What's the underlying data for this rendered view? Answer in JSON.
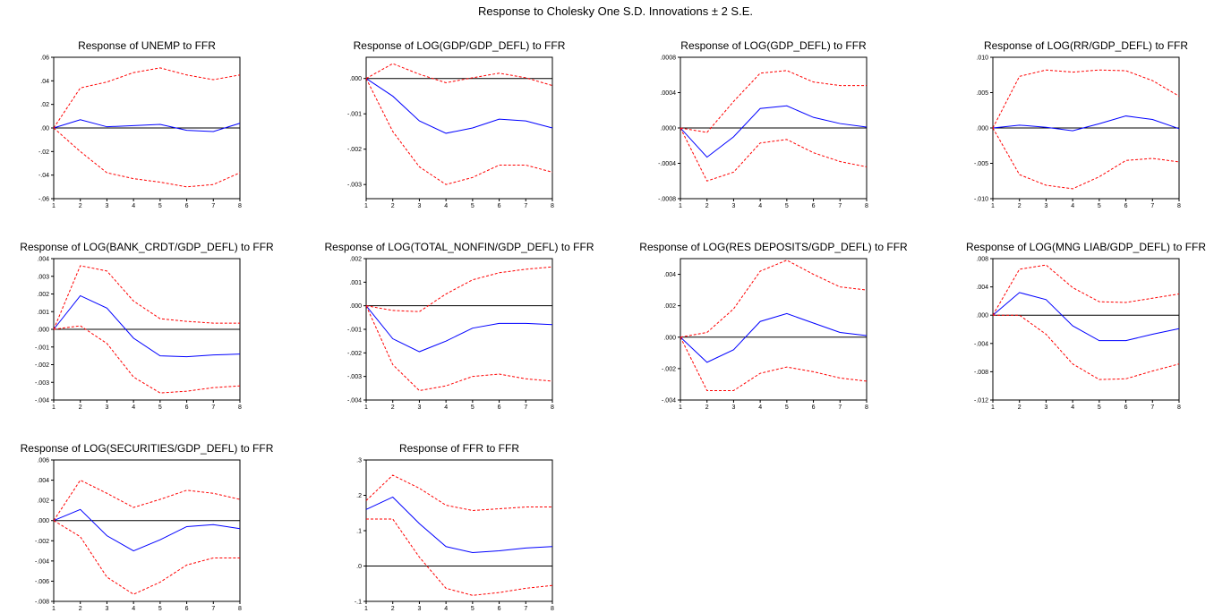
{
  "title": "Response to Cholesky One S.D. Innovations ± 2 S.E.",
  "colors": {
    "response": "#0000ff",
    "band": "#ff0000",
    "zero": "#000000"
  },
  "chart_data": [
    {
      "type": "line",
      "title": "Response of UNEMP to FFR",
      "x": [
        1,
        2,
        3,
        4,
        5,
        6,
        7,
        8
      ],
      "ylim": [
        -0.06,
        0.06
      ],
      "yticks": [
        ".06",
        ".04",
        ".02",
        ".00",
        "-.02",
        "-.04",
        "-.06"
      ],
      "series": [
        {
          "values": [
            0.0,
            0.007,
            0.001,
            0.002,
            0.003,
            -0.002,
            -0.003,
            0.004
          ]
        },
        {
          "values": [
            0.0,
            0.034,
            0.039,
            0.047,
            0.051,
            0.045,
            0.041,
            0.045
          ]
        },
        {
          "values": [
            0.0,
            -0.02,
            -0.038,
            -0.043,
            -0.046,
            -0.05,
            -0.048,
            -0.038
          ]
        }
      ]
    },
    {
      "type": "line",
      "title": "Response of LOG(GDP/GDP_DEFL) to FFR",
      "x": [
        1,
        2,
        3,
        4,
        5,
        6,
        7,
        8
      ],
      "ylim": [
        -0.0034,
        0.0006
      ],
      "yticks": [
        ".000",
        "-.001",
        "-.002",
        "-.003"
      ],
      "series": [
        {
          "values": [
            0.0,
            -0.0005,
            -0.0012,
            -0.00155,
            -0.0014,
            -0.00115,
            -0.0012,
            -0.0014
          ]
        },
        {
          "values": [
            0.0,
            0.00042,
            0.00012,
            -0.00012,
            2e-05,
            0.00015,
            2e-05,
            -0.0002
          ]
        },
        {
          "values": [
            0.0,
            -0.0015,
            -0.0025,
            -0.003,
            -0.0028,
            -0.00245,
            -0.00245,
            -0.00265
          ]
        }
      ]
    },
    {
      "type": "line",
      "title": "Response of LOG(GDP_DEFL) to FFR",
      "x": [
        1,
        2,
        3,
        4,
        5,
        6,
        7,
        8
      ],
      "ylim": [
        -0.0008,
        0.0008
      ],
      "yticks": [
        ".0008",
        ".0004",
        ".0000",
        "-.0004",
        "-.0008"
      ],
      "series": [
        {
          "values": [
            0.0,
            -0.00033,
            -0.0001,
            0.00022,
            0.00025,
            0.00012,
            5e-05,
            1e-05
          ]
        },
        {
          "values": [
            0.0,
            -5e-05,
            0.0003,
            0.00062,
            0.00065,
            0.00052,
            0.00048,
            0.00048
          ]
        },
        {
          "values": [
            0.0,
            -0.0006,
            -0.0005,
            -0.00017,
            -0.00013,
            -0.00028,
            -0.00038,
            -0.00044
          ]
        }
      ]
    },
    {
      "type": "line",
      "title": "Response of LOG(RR/GDP_DEFL) to FFR",
      "x": [
        1,
        2,
        3,
        4,
        5,
        6,
        7,
        8
      ],
      "ylim": [
        -0.01,
        0.01
      ],
      "yticks": [
        ".010",
        ".005",
        ".000",
        "-.005",
        "-.010"
      ],
      "series": [
        {
          "values": [
            0.0,
            0.0004,
            0.0001,
            -0.0004,
            0.0006,
            0.0017,
            0.0012,
            -0.0001
          ]
        },
        {
          "values": [
            0.0,
            0.0073,
            0.0082,
            0.0079,
            0.0082,
            0.0081,
            0.0067,
            0.0045
          ]
        },
        {
          "values": [
            0.0,
            -0.0066,
            -0.0081,
            -0.0086,
            -0.0069,
            -0.0046,
            -0.0043,
            -0.0048
          ]
        }
      ]
    },
    {
      "type": "line",
      "title": "Response of LOG(BANK_CRDT/GDP_DEFL) to FFR",
      "x": [
        1,
        2,
        3,
        4,
        5,
        6,
        7,
        8
      ],
      "ylim": [
        -0.004,
        0.004
      ],
      "yticks": [
        ".004",
        ".003",
        ".002",
        ".001",
        ".000",
        "-.001",
        "-.002",
        "-.003",
        "-.004"
      ],
      "series": [
        {
          "values": [
            0.0,
            0.0019,
            0.0012,
            -0.0005,
            -0.0015,
            -0.00155,
            -0.00145,
            -0.0014
          ]
        },
        {
          "values": [
            0.0,
            0.0036,
            0.0033,
            0.0016,
            0.0006,
            0.00045,
            0.00035,
            0.00035
          ]
        },
        {
          "values": [
            0.0,
            0.0002,
            -0.0008,
            -0.0027,
            -0.0036,
            -0.0035,
            -0.0033,
            -0.0032
          ]
        }
      ]
    },
    {
      "type": "line",
      "title": "Response of LOG(TOTAL_NONFIN/GDP_DEFL) to FFR",
      "x": [
        1,
        2,
        3,
        4,
        5,
        6,
        7,
        8
      ],
      "ylim": [
        -0.004,
        0.002
      ],
      "yticks": [
        ".002",
        ".001",
        ".000",
        "-.001",
        "-.002",
        "-.003",
        "-.004"
      ],
      "series": [
        {
          "values": [
            0.0,
            -0.0014,
            -0.00195,
            -0.0015,
            -0.00095,
            -0.00075,
            -0.00075,
            -0.0008
          ]
        },
        {
          "values": [
            0.0,
            -0.0002,
            -0.00025,
            0.0005,
            0.0011,
            0.0014,
            0.00155,
            0.00165
          ]
        },
        {
          "values": [
            0.0,
            -0.0025,
            -0.0036,
            -0.0034,
            -0.003,
            -0.0029,
            -0.0031,
            -0.0032
          ]
        }
      ]
    },
    {
      "type": "line",
      "title": "Response of LOG(RES DEPOSITS/GDP_DEFL) to FFR",
      "x": [
        1,
        2,
        3,
        4,
        5,
        6,
        7,
        8
      ],
      "ylim": [
        -0.004,
        0.005
      ],
      "yticks": [
        ".004",
        ".002",
        ".000",
        "-.002",
        "-.004"
      ],
      "series": [
        {
          "values": [
            0.0,
            -0.0016,
            -0.0008,
            0.001,
            0.0015,
            0.0009,
            0.0003,
            0.0001
          ]
        },
        {
          "values": [
            0.0,
            0.0003,
            0.0018,
            0.0042,
            0.0049,
            0.004,
            0.0032,
            0.003
          ]
        },
        {
          "values": [
            0.0,
            -0.0034,
            -0.0034,
            -0.0023,
            -0.0019,
            -0.0022,
            -0.0026,
            -0.0028
          ]
        }
      ]
    },
    {
      "type": "line",
      "title": "Response of LOG(MNG LIAB/GDP_DEFL) to FFR",
      "x": [
        1,
        2,
        3,
        4,
        5,
        6,
        7,
        8
      ],
      "ylim": [
        -0.012,
        0.008
      ],
      "yticks": [
        ".008",
        ".004",
        ".000",
        "-.004",
        "-.008",
        "-.012"
      ],
      "series": [
        {
          "values": [
            0.0,
            0.0032,
            0.0022,
            -0.0015,
            -0.0036,
            -0.0036,
            -0.0027,
            -0.0019
          ]
        },
        {
          "values": [
            0.0,
            0.0065,
            0.0071,
            0.0039,
            0.0019,
            0.0018,
            0.0024,
            0.003
          ]
        },
        {
          "values": [
            0.0,
            0.0,
            -0.0027,
            -0.0069,
            -0.0091,
            -0.009,
            -0.0079,
            -0.0069
          ]
        }
      ]
    },
    {
      "type": "line",
      "title": "Response of LOG(SECURITIES/GDP_DEFL) to FFR",
      "x": [
        1,
        2,
        3,
        4,
        5,
        6,
        7,
        8
      ],
      "ylim": [
        -0.008,
        0.006
      ],
      "yticks": [
        ".006",
        ".004",
        ".002",
        ".000",
        "-.002",
        "-.004",
        "-.006",
        "-.008"
      ],
      "series": [
        {
          "values": [
            0.0,
            0.0011,
            -0.0015,
            -0.003,
            -0.0019,
            -0.0006,
            -0.0004,
            -0.0008
          ]
        },
        {
          "values": [
            0.0,
            0.004,
            0.0027,
            0.0013,
            0.0021,
            0.003,
            0.0027,
            0.0021
          ]
        },
        {
          "values": [
            0.0,
            -0.0016,
            -0.0056,
            -0.0073,
            -0.0061,
            -0.0044,
            -0.0037,
            -0.0037
          ]
        }
      ]
    },
    {
      "type": "line",
      "title": "Response of FFR to FFR",
      "x": [
        1,
        2,
        3,
        4,
        5,
        6,
        7,
        8
      ],
      "ylim": [
        -0.1,
        0.3
      ],
      "yticks": [
        ".3",
        ".2",
        ".1",
        ".0",
        "-.1"
      ],
      "series": [
        {
          "values": [
            0.16,
            0.195,
            0.12,
            0.055,
            0.038,
            0.043,
            0.051,
            0.055
          ]
        },
        {
          "values": [
            0.185,
            0.257,
            0.22,
            0.172,
            0.157,
            0.162,
            0.167,
            0.167
          ]
        },
        {
          "values": [
            0.133,
            0.133,
            0.025,
            -0.063,
            -0.083,
            -0.075,
            -0.063,
            -0.055
          ]
        }
      ]
    }
  ]
}
